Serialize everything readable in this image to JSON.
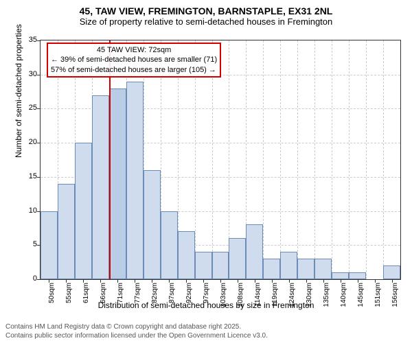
{
  "title_main": "45, TAW VIEW, FREMINGTON, BARNSTAPLE, EX31 2NL",
  "title_sub": "Size of property relative to semi-detached houses in Fremington",
  "chart": {
    "type": "histogram",
    "y_label": "Number of semi-detached properties",
    "x_label": "Distribution of semi-detached houses by size in Fremington",
    "ylim": [
      0,
      35
    ],
    "ytick_step": 5,
    "y_ticks": [
      0,
      5,
      10,
      15,
      20,
      25,
      30,
      35
    ],
    "x_ticks": [
      "50sqm",
      "55sqm",
      "61sqm",
      "66sqm",
      "71sqm",
      "77sqm",
      "82sqm",
      "87sqm",
      "92sqm",
      "97sqm",
      "103sqm",
      "108sqm",
      "114sqm",
      "119sqm",
      "124sqm",
      "130sqm",
      "135sqm",
      "140sqm",
      "145sqm",
      "151sqm",
      "156sqm"
    ],
    "bars": [
      {
        "value": 10,
        "color": "#cfdcee"
      },
      {
        "value": 14,
        "color": "#cfdcee"
      },
      {
        "value": 20,
        "color": "#cfdcee"
      },
      {
        "value": 27,
        "color": "#cfdcee"
      },
      {
        "value": 28,
        "color": "#b9cde6"
      },
      {
        "value": 29,
        "color": "#cfdcee"
      },
      {
        "value": 16,
        "color": "#cfdcee"
      },
      {
        "value": 10,
        "color": "#cfdcee"
      },
      {
        "value": 7,
        "color": "#cfdcee"
      },
      {
        "value": 4,
        "color": "#cfdcee"
      },
      {
        "value": 4,
        "color": "#cfdcee"
      },
      {
        "value": 6,
        "color": "#cfdcee"
      },
      {
        "value": 8,
        "color": "#cfdcee"
      },
      {
        "value": 3,
        "color": "#cfdcee"
      },
      {
        "value": 4,
        "color": "#cfdcee"
      },
      {
        "value": 3,
        "color": "#cfdcee"
      },
      {
        "value": 3,
        "color": "#cfdcee"
      },
      {
        "value": 1,
        "color": "#cfdcee"
      },
      {
        "value": 1,
        "color": "#cfdcee"
      },
      {
        "value": 0,
        "color": "#cfdcee"
      },
      {
        "value": 2,
        "color": "#cfdcee"
      }
    ],
    "highlight_index": 4,
    "highlight_color": "#d00000",
    "bar_border_color": "#6b8cb8",
    "grid_color": "#cccccc",
    "background_color": "#ffffff"
  },
  "annotation": {
    "line1": "45 TAW VIEW: 72sqm",
    "line2": "← 39% of semi-detached houses are smaller (71)",
    "line3": "57% of semi-detached houses are larger (105) →",
    "border_color": "#d00000"
  },
  "footer": {
    "line1": "Contains HM Land Registry data © Crown copyright and database right 2025.",
    "line2": "Contains public sector information licensed under the Open Government Licence v3.0."
  }
}
